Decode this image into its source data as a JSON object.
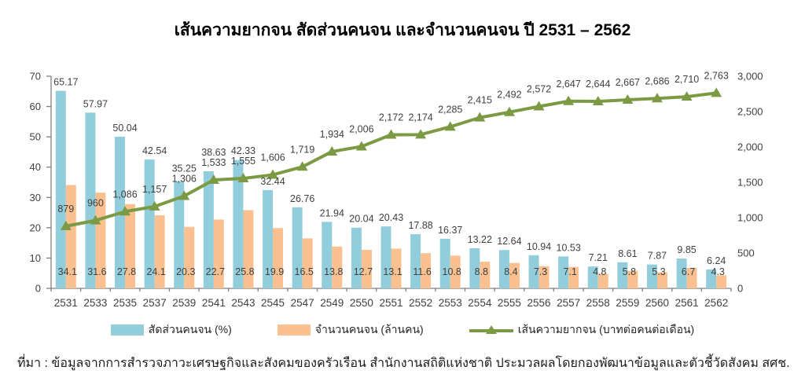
{
  "chart_data": {
    "type": "combo-bar-line",
    "title": "เส้นความยากจน  สัดส่วนคนจน และจำนวนคนจน ปี 2531 – 2562",
    "xlabel": "",
    "ylabel_left": "",
    "ylabel_right": "",
    "grid": false,
    "legend_position": "bottom",
    "categories": [
      "2531",
      "2533",
      "2535",
      "2537",
      "2539",
      "2541",
      "2543",
      "2545",
      "2547",
      "2549",
      "2550",
      "2551",
      "2552",
      "2553",
      "2554",
      "2555",
      "2556",
      "2557",
      "2558",
      "2559",
      "2560",
      "2561",
      "2562"
    ],
    "left_axis": {
      "min": 0,
      "max": 70,
      "step": 10
    },
    "right_axis": {
      "min": 0,
      "max": 3000,
      "step": 500
    },
    "series": [
      {
        "name": "สัดส่วนคนจน (%)",
        "type": "bar",
        "axis": "left",
        "color": "#92cddc",
        "decimals": 2,
        "values": [
          65.17,
          57.97,
          50.04,
          42.54,
          35.25,
          38.63,
          42.33,
          32.44,
          26.76,
          21.94,
          20.04,
          20.43,
          17.88,
          16.37,
          13.22,
          12.64,
          10.94,
          10.53,
          7.21,
          8.61,
          7.87,
          9.85,
          6.24
        ]
      },
      {
        "name": "จำนวนคนจน (ล้านคน)",
        "type": "bar",
        "axis": "left",
        "color": "#fac090",
        "decimals": 1,
        "values": [
          34.1,
          31.6,
          27.8,
          24.1,
          20.3,
          22.7,
          25.8,
          19.9,
          16.5,
          13.8,
          12.7,
          13.1,
          11.6,
          10.8,
          8.8,
          8.4,
          7.3,
          7.1,
          4.8,
          5.8,
          5.3,
          6.7,
          4.3
        ]
      },
      {
        "name": "เส้นความยากจน (บาทต่อคนต่อเดือน)",
        "type": "line",
        "axis": "right",
        "color": "#7b9a43",
        "thousands": true,
        "values": [
          879,
          960,
          1086,
          1157,
          1306,
          1533,
          1555,
          1606,
          1719,
          1934,
          2006,
          2172,
          2174,
          2285,
          2415,
          2492,
          2572,
          2647,
          2644,
          2667,
          2686,
          2710,
          2763
        ]
      }
    ]
  },
  "source": "ที่มา : ข้อมูลจากการสำรวจภาวะเศรษฐกิจและสังคมของครัวเรือน สำนักงานสถิติแห่งชาติ ประมวลผลโดยกองพัฒนาข้อมูลและตัวชี้วัดสังคม สศช."
}
